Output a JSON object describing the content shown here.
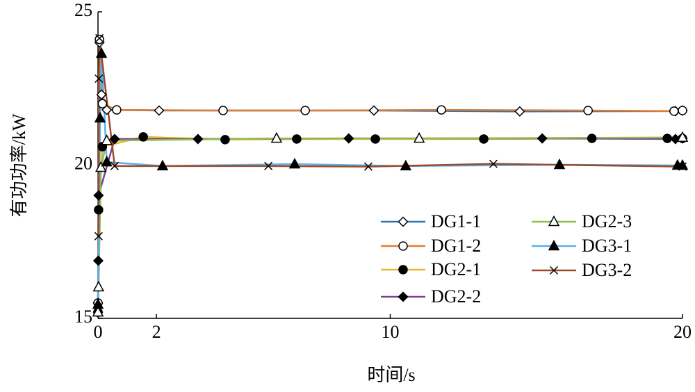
{
  "chart_data": {
    "type": "line",
    "x_label": "时间/s",
    "y_label": "有功功率/kW",
    "xlim": [
      0,
      20
    ],
    "ylim": [
      15,
      25
    ],
    "xticks": [
      0,
      2,
      10,
      20
    ],
    "yticks": [
      15,
      20,
      25
    ],
    "series": [
      {
        "name": "DG1-1",
        "color": "#2e75b6",
        "marker": "diamond-open",
        "x": [
          0,
          0.05,
          0.12,
          0.3,
          2.09,
          9.44,
          14.43,
          19.76,
          20
        ],
        "values": [
          15.5,
          24.0,
          22.3,
          21.8,
          21.78,
          21.78,
          21.75,
          21.76,
          21.78
        ]
      },
      {
        "name": "DG1-2",
        "color": "#e37c30",
        "marker": "circle-open",
        "x": [
          0,
          0.05,
          0.15,
          0.64,
          4.28,
          7.09,
          11.75,
          16.77,
          19.71,
          20
        ],
        "values": [
          15.5,
          24.1,
          22.0,
          21.8,
          21.78,
          21.78,
          21.8,
          21.78,
          21.76,
          21.78
        ]
      },
      {
        "name": "DG2-1",
        "color": "#e8b830",
        "marker": "circle-filled",
        "x": [
          0,
          0.02,
          0.15,
          1.55,
          4.35,
          6.8,
          9.49,
          13.2,
          16.9,
          19.48,
          20
        ],
        "values": [
          15.2,
          18.54,
          20.6,
          20.92,
          20.83,
          20.85,
          20.85,
          20.85,
          20.87,
          20.87,
          20.87
        ]
      },
      {
        "name": "DG2-2",
        "color": "#7e3f8f",
        "marker": "diamond-filled",
        "x": [
          0,
          0.01,
          0.02,
          0.57,
          3.42,
          8.58,
          15.2,
          19.76,
          20
        ],
        "values": [
          15.2,
          16.88,
          19.01,
          20.85,
          20.85,
          20.87,
          20.87,
          20.85,
          20.87
        ]
      },
      {
        "name": "DG2-3",
        "color": "#8cc04a",
        "marker": "triangle-open",
        "x": [
          0,
          0.02,
          0.1,
          0.3,
          6.11,
          10.99,
          20
        ],
        "values": [
          15.2,
          16.02,
          19.92,
          20.8,
          20.87,
          20.87,
          20.9
        ]
      },
      {
        "name": "DG3-1",
        "color": "#5ab0e8",
        "marker": "triangle-filled",
        "x": [
          0,
          0.07,
          0.12,
          0.3,
          2.21,
          6.73,
          10.53,
          15.79,
          19.83,
          20
        ],
        "values": [
          15.45,
          21.53,
          23.64,
          20.1,
          19.97,
          20.03,
          19.97,
          20.01,
          19.99,
          19.99
        ]
      },
      {
        "name": "DG3-2",
        "color": "#9b4a2a",
        "marker": "x",
        "x": [
          0.02,
          0.03,
          0.05,
          0.57,
          5.83,
          9.25,
          13.53,
          20
        ],
        "values": [
          17.68,
          22.82,
          24.14,
          19.97,
          19.97,
          19.95,
          20.04,
          19.95
        ]
      }
    ]
  }
}
